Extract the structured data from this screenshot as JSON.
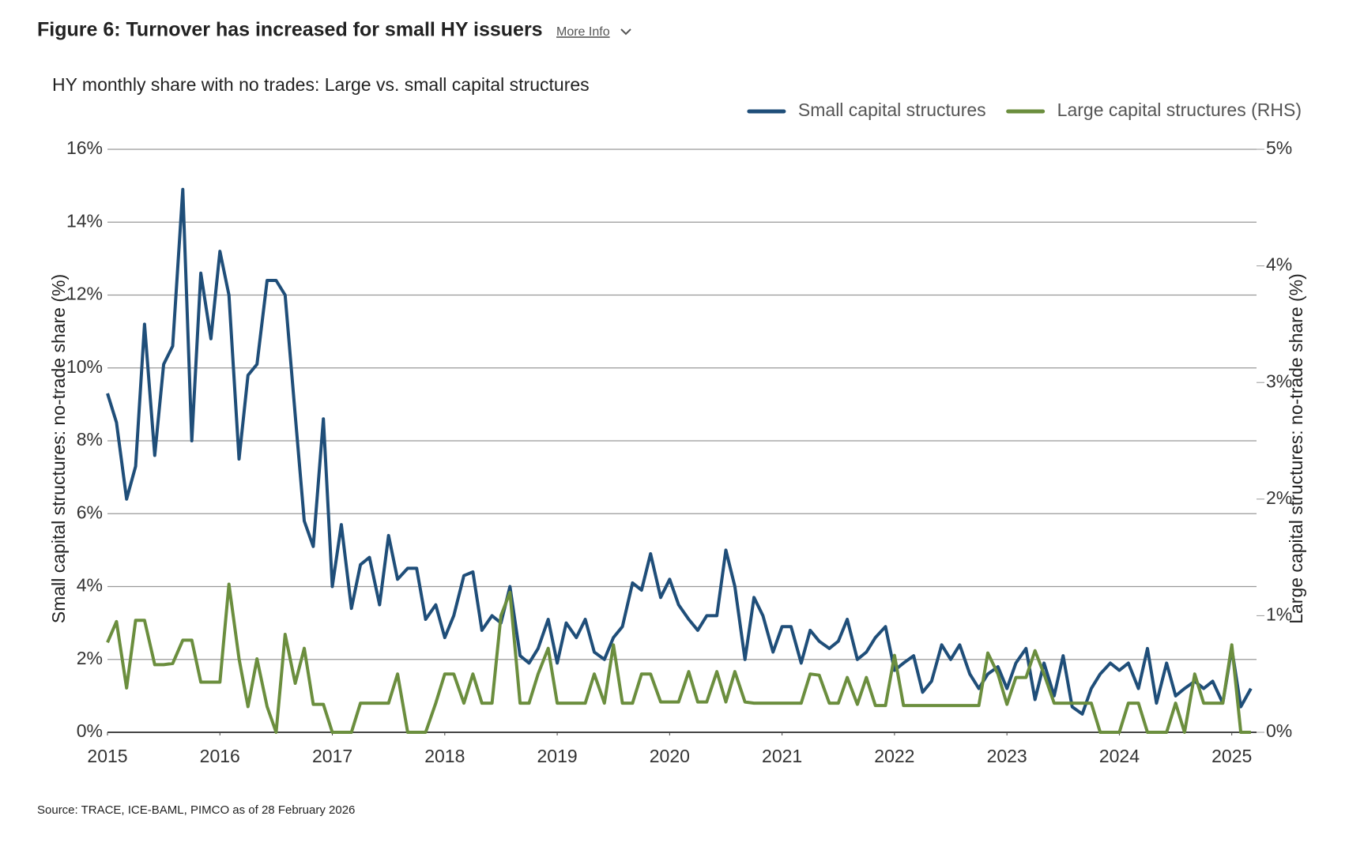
{
  "header": {
    "title": "Figure 6: Turnover has increased for small HY issuers",
    "more_info": "More Info"
  },
  "chart_data": {
    "type": "line",
    "title": "HY monthly share with no trades: Large vs. small capital structures",
    "ylabel": "Small capital structures: no-trade share (%)",
    "y2label": "Large capital structures: no-trade share (%)",
    "source": "Source: TRACE, ICE-BAML, PIMCO as of 28 February 2026",
    "legend": "top-right",
    "grid": true,
    "xlim": [
      2015,
      2025.22
    ],
    "xticks": [
      2015,
      2016,
      2017,
      2018,
      2019,
      2020,
      2021,
      2022,
      2023,
      2024,
      2025
    ],
    "ylim": [
      0,
      16
    ],
    "yticks": [
      {
        "value": 0,
        "label": "0%"
      },
      {
        "value": 2,
        "label": "2%"
      },
      {
        "value": 4,
        "label": "4%"
      },
      {
        "value": 6,
        "label": "6%"
      },
      {
        "value": 8,
        "label": "8%"
      },
      {
        "value": 10,
        "label": "10%"
      },
      {
        "value": 12,
        "label": "12%"
      },
      {
        "value": 14,
        "label": "14%"
      },
      {
        "value": 16,
        "label": "16%"
      }
    ],
    "y2lim": [
      0,
      5
    ],
    "y2ticks": [
      {
        "value": 0,
        "label": "0%"
      },
      {
        "value": 1,
        "label": "1%"
      },
      {
        "value": 2,
        "label": "2%"
      },
      {
        "value": 3,
        "label": "3%"
      },
      {
        "value": 4,
        "label": "4%"
      },
      {
        "value": 5,
        "label": "5%"
      }
    ],
    "x": [
      2015,
      2015.08,
      2015.17,
      2015.25,
      2015.33,
      2015.42,
      2015.5,
      2015.58,
      2015.67,
      2015.75,
      2015.83,
      2015.92,
      2016,
      2016.08,
      2016.17,
      2016.25,
      2016.33,
      2016.42,
      2016.5,
      2016.58,
      2016.67,
      2016.75,
      2016.83,
      2016.92,
      2017,
      2017.08,
      2017.17,
      2017.25,
      2017.33,
      2017.42,
      2017.5,
      2017.58,
      2017.67,
      2017.75,
      2017.83,
      2017.92,
      2018,
      2018.08,
      2018.17,
      2018.25,
      2018.33,
      2018.42,
      2018.5,
      2018.58,
      2018.67,
      2018.75,
      2018.83,
      2018.92,
      2019,
      2019.08,
      2019.17,
      2019.25,
      2019.33,
      2019.42,
      2019.5,
      2019.58,
      2019.67,
      2019.75,
      2019.83,
      2019.92,
      2020,
      2020.08,
      2020.17,
      2020.25,
      2020.33,
      2020.42,
      2020.5,
      2020.58,
      2020.67,
      2020.75,
      2020.83,
      2020.92,
      2021,
      2021.08,
      2021.17,
      2021.25,
      2021.33,
      2021.42,
      2021.5,
      2021.58,
      2021.67,
      2021.75,
      2021.83,
      2021.92,
      2022,
      2022.08,
      2022.17,
      2022.25,
      2022.33,
      2022.42,
      2022.5,
      2022.58,
      2022.67,
      2022.75,
      2022.83,
      2022.92,
      2023,
      2023.08,
      2023.17,
      2023.25,
      2023.33,
      2023.42,
      2023.5,
      2023.58,
      2023.67,
      2023.75,
      2023.83,
      2023.92,
      2024,
      2024.08,
      2024.17,
      2024.25,
      2024.33,
      2024.42,
      2024.5,
      2024.58,
      2024.67,
      2024.75,
      2024.83,
      2024.92,
      2025,
      2025.08,
      2025.17
    ],
    "series": [
      {
        "name": "Small capital structures",
        "color": "#1f4e79",
        "values": [
          9.3,
          8.5,
          6.4,
          7.3,
          11.2,
          7.6,
          10.1,
          10.6,
          14.9,
          8.0,
          12.6,
          10.8,
          13.2,
          12.0,
          7.5,
          9.8,
          10.1,
          12.4,
          12.4,
          12.0,
          8.7,
          5.8,
          5.1,
          8.6,
          4.0,
          5.7,
          3.4,
          4.6,
          4.8,
          3.5,
          5.4,
          4.2,
          4.5,
          4.5,
          3.1,
          3.5,
          2.6,
          3.2,
          4.3,
          4.4,
          2.8,
          3.2,
          3.0,
          4.0,
          2.1,
          1.9,
          2.3,
          3.1,
          1.9,
          3.0,
          2.6,
          3.1,
          2.2,
          2.0,
          2.6,
          2.9,
          4.1,
          3.9,
          4.9,
          3.7,
          4.2,
          3.5,
          3.1,
          2.8,
          3.2,
          3.2,
          5.0,
          4.0,
          2.0,
          3.7,
          3.2,
          2.2,
          2.9,
          2.9,
          1.9,
          2.8,
          2.5,
          2.3,
          2.5,
          3.1,
          2.0,
          2.2,
          2.6,
          2.9,
          1.7,
          1.9,
          2.1,
          1.1,
          1.4,
          2.4,
          2.0,
          2.4,
          1.6,
          1.2,
          1.6,
          1.8,
          1.2,
          1.9,
          2.3,
          0.9,
          1.9,
          1.0,
          2.1,
          0.7,
          0.5,
          1.2,
          1.6,
          1.9,
          1.7,
          1.9,
          1.2,
          2.3,
          0.8,
          1.9,
          1.0,
          1.2,
          1.4,
          1.2,
          1.4,
          0.8,
          2.3,
          0.7,
          1.2
        ]
      },
      {
        "name": "Large capital structures (RHS)",
        "color": "#6b8e3e",
        "axis": "y2",
        "values": [
          0.77,
          0.95,
          0.38,
          0.96,
          0.96,
          0.58,
          0.58,
          0.59,
          0.79,
          0.79,
          0.43,
          0.43,
          0.43,
          1.27,
          0.63,
          0.22,
          0.63,
          0.22,
          0,
          0.84,
          0.42,
          0.72,
          0.24,
          0.24,
          0,
          0,
          0,
          0.25,
          0.25,
          0.25,
          0.25,
          0.5,
          0,
          0,
          0,
          0.25,
          0.5,
          0.5,
          0.25,
          0.5,
          0.25,
          0.25,
          1.0,
          1.2,
          0.25,
          0.25,
          0.5,
          0.72,
          0.25,
          0.25,
          0.25,
          0.25,
          0.5,
          0.25,
          0.75,
          0.25,
          0.25,
          0.5,
          0.5,
          0.26,
          0.26,
          0.26,
          0.52,
          0.26,
          0.26,
          0.52,
          0.26,
          0.52,
          0.26,
          0.25,
          0.25,
          0.25,
          0.25,
          0.25,
          0.25,
          0.5,
          0.49,
          0.25,
          0.25,
          0.47,
          0.24,
          0.47,
          0.23,
          0.23,
          0.66,
          0.23,
          0.23,
          0.23,
          0.23,
          0.23,
          0.23,
          0.23,
          0.23,
          0.23,
          0.68,
          0.5,
          0.24,
          0.47,
          0.47,
          0.7,
          0.5,
          0.25,
          0.25,
          0.25,
          0.25,
          0.25,
          0,
          0,
          0,
          0.25,
          0.25,
          0,
          0,
          0,
          0.25,
          0,
          0.5,
          0.25,
          0.25,
          0.25,
          0.75,
          0,
          0
        ]
      }
    ]
  }
}
